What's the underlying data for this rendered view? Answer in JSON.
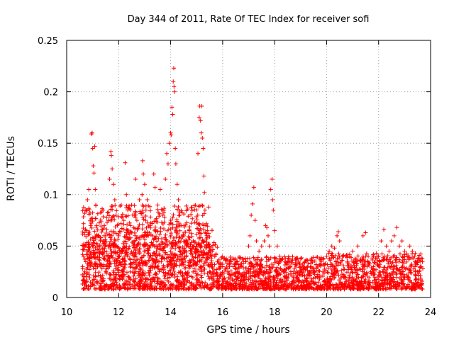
{
  "chart_data": {
    "type": "scatter",
    "title": "Day 344 of 2011, Rate Of TEC Index for receiver sofi",
    "xlabel": "GPS time / hours",
    "ylabel": "ROTI / TECUs",
    "xlim": [
      10,
      24
    ],
    "ylim": [
      0,
      0.25
    ],
    "x_ticks": [
      "10",
      "12",
      "14",
      "16",
      "18",
      "20",
      "22",
      "24"
    ],
    "y_ticks": [
      "0",
      "0.05",
      "0.1",
      "0.15",
      "0.2",
      "0.25"
    ],
    "grid": true,
    "marker": "+",
    "series": [
      {
        "color": "#ff0000",
        "points": [
          [
            10.65,
            0.04
          ],
          [
            10.7,
            0.025
          ],
          [
            10.75,
            0.065
          ],
          [
            10.8,
            0.095
          ],
          [
            10.85,
            0.105
          ],
          [
            10.9,
            0.082
          ],
          [
            10.92,
            0.07
          ],
          [
            10.95,
            0.159
          ],
          [
            10.98,
            0.16
          ],
          [
            11.0,
            0.145
          ],
          [
            11.02,
            0.128
          ],
          [
            11.05,
            0.121
          ],
          [
            11.08,
            0.147
          ],
          [
            11.1,
            0.105
          ],
          [
            11.12,
            0.09
          ],
          [
            11.15,
            0.07
          ],
          [
            11.2,
            0.06
          ],
          [
            11.3,
            0.055
          ],
          [
            11.4,
            0.085
          ],
          [
            11.45,
            0.07
          ],
          [
            11.5,
            0.06
          ],
          [
            11.6,
            0.075
          ],
          [
            11.65,
            0.115
          ],
          [
            11.7,
            0.142
          ],
          [
            11.72,
            0.138
          ],
          [
            11.75,
            0.125
          ],
          [
            11.8,
            0.11
          ],
          [
            11.85,
            0.095
          ],
          [
            11.9,
            0.08
          ],
          [
            11.95,
            0.07
          ],
          [
            12.0,
            0.06
          ],
          [
            12.1,
            0.09
          ],
          [
            12.2,
            0.075
          ],
          [
            12.25,
            0.131
          ],
          [
            12.3,
            0.1
          ],
          [
            12.35,
            0.085
          ],
          [
            12.45,
            0.07
          ],
          [
            12.5,
            0.09
          ],
          [
            12.6,
            0.08
          ],
          [
            12.65,
            0.115
          ],
          [
            12.7,
            0.075
          ],
          [
            12.8,
            0.095
          ],
          [
            12.9,
            0.1
          ],
          [
            12.92,
            0.133
          ],
          [
            12.95,
            0.12
          ],
          [
            13.0,
            0.11
          ],
          [
            13.05,
            0.085
          ],
          [
            13.1,
            0.095
          ],
          [
            13.2,
            0.07
          ],
          [
            13.3,
            0.06
          ],
          [
            13.35,
            0.12
          ],
          [
            13.4,
            0.107
          ],
          [
            13.5,
            0.09
          ],
          [
            13.6,
            0.105
          ],
          [
            13.7,
            0.08
          ],
          [
            13.8,
            0.115
          ],
          [
            13.85,
            0.14
          ],
          [
            13.9,
            0.13
          ],
          [
            13.95,
            0.15
          ],
          [
            14.0,
            0.16
          ],
          [
            14.02,
            0.158
          ],
          [
            14.05,
            0.185
          ],
          [
            14.08,
            0.178
          ],
          [
            14.1,
            0.21
          ],
          [
            14.12,
            0.223
          ],
          [
            14.13,
            0.205
          ],
          [
            14.15,
            0.2
          ],
          [
            14.18,
            0.145
          ],
          [
            14.2,
            0.13
          ],
          [
            14.25,
            0.11
          ],
          [
            14.3,
            0.095
          ],
          [
            14.35,
            0.08
          ],
          [
            14.4,
            0.07
          ],
          [
            14.5,
            0.06
          ],
          [
            14.6,
            0.055
          ],
          [
            14.7,
            0.05
          ],
          [
            14.8,
            0.045
          ],
          [
            15.05,
            0.14
          ],
          [
            15.1,
            0.175
          ],
          [
            15.12,
            0.186
          ],
          [
            15.15,
            0.172
          ],
          [
            15.18,
            0.16
          ],
          [
            15.2,
            0.186
          ],
          [
            15.22,
            0.155
          ],
          [
            15.25,
            0.145
          ],
          [
            15.28,
            0.118
          ],
          [
            15.3,
            0.102
          ],
          [
            15.32,
            0.085
          ],
          [
            15.35,
            0.07
          ],
          [
            15.4,
            0.06
          ],
          [
            15.5,
            0.05
          ],
          [
            15.6,
            0.045
          ],
          [
            15.7,
            0.04
          ],
          [
            15.8,
            0.035
          ],
          [
            15.9,
            0.03
          ],
          [
            16.0,
            0.03
          ],
          [
            16.2,
            0.028
          ],
          [
            16.4,
            0.03
          ],
          [
            16.6,
            0.032
          ],
          [
            16.8,
            0.035
          ],
          [
            17.0,
            0.05
          ],
          [
            17.05,
            0.06
          ],
          [
            17.1,
            0.08
          ],
          [
            17.15,
            0.091
          ],
          [
            17.2,
            0.107
          ],
          [
            17.25,
            0.075
          ],
          [
            17.3,
            0.055
          ],
          [
            17.4,
            0.045
          ],
          [
            17.5,
            0.05
          ],
          [
            17.6,
            0.055
          ],
          [
            17.65,
            0.07
          ],
          [
            17.7,
            0.068
          ],
          [
            17.75,
            0.06
          ],
          [
            17.8,
            0.05
          ],
          [
            17.85,
            0.105
          ],
          [
            17.9,
            0.115
          ],
          [
            17.92,
            0.095
          ],
          [
            17.95,
            0.085
          ],
          [
            18.0,
            0.065
          ],
          [
            18.1,
            0.05
          ],
          [
            18.2,
            0.04
          ],
          [
            18.4,
            0.035
          ],
          [
            18.6,
            0.03
          ],
          [
            18.8,
            0.032
          ],
          [
            19.0,
            0.03
          ],
          [
            19.2,
            0.028
          ],
          [
            19.4,
            0.03
          ],
          [
            19.6,
            0.032
          ],
          [
            19.8,
            0.035
          ],
          [
            20.0,
            0.04
          ],
          [
            20.1,
            0.045
          ],
          [
            20.2,
            0.05
          ],
          [
            20.3,
            0.048
          ],
          [
            20.4,
            0.06
          ],
          [
            20.45,
            0.064
          ],
          [
            20.5,
            0.055
          ],
          [
            20.6,
            0.04
          ],
          [
            20.8,
            0.035
          ],
          [
            21.0,
            0.045
          ],
          [
            21.2,
            0.05
          ],
          [
            21.4,
            0.06
          ],
          [
            21.5,
            0.063
          ],
          [
            21.6,
            0.04
          ],
          [
            21.8,
            0.03
          ],
          [
            22.0,
            0.04
          ],
          [
            22.1,
            0.055
          ],
          [
            22.2,
            0.066
          ],
          [
            22.3,
            0.05
          ],
          [
            22.4,
            0.045
          ],
          [
            22.5,
            0.055
          ],
          [
            22.6,
            0.06
          ],
          [
            22.7,
            0.068
          ],
          [
            22.8,
            0.05
          ],
          [
            22.9,
            0.055
          ],
          [
            23.0,
            0.045
          ],
          [
            23.1,
            0.04
          ],
          [
            23.2,
            0.05
          ],
          [
            23.3,
            0.045
          ],
          [
            23.4,
            0.03
          ],
          [
            23.5,
            0.025
          ],
          [
            23.6,
            0.03
          ],
          [
            23.7,
            0.028
          ]
        ]
      }
    ],
    "band_note": "dense cloud of points between x 10.6 and 23.7"
  }
}
